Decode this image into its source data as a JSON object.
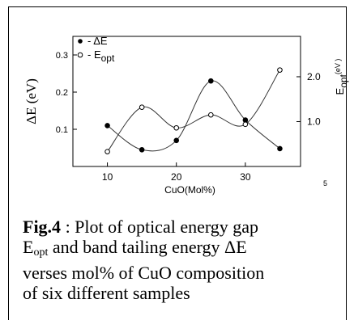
{
  "chart_data": {
    "type": "line",
    "xlabel": "CuO(Mol%)",
    "ylabel_left": "ΔE (eV)",
    "ylabel_right_main": "E",
    "ylabel_right_sub": "opt",
    "ylabel_right_unit": "(eV )",
    "x_ticks": [
      "10",
      "20",
      "30"
    ],
    "y_left_ticks": [
      "0.1",
      "0.2",
      "0.3"
    ],
    "y_right_ticks": [
      "1.0",
      "2.0"
    ],
    "xlim": [
      5,
      38
    ],
    "ylim_left": [
      0,
      0.35
    ],
    "ylim_right": [
      0,
      2.9
    ],
    "legend_location": "top-left",
    "series": [
      {
        "name": "ΔE",
        "name_sub": "",
        "axis": "left",
        "marker": "filled",
        "x": [
          10,
          15,
          20,
          25,
          30,
          35
        ],
        "y": [
          0.11,
          0.045,
          0.07,
          0.23,
          0.125,
          0.048
        ]
      },
      {
        "name": "E",
        "name_sub": "opt",
        "axis": "right",
        "marker": "open",
        "x": [
          10,
          15,
          20,
          25,
          30,
          35
        ],
        "y": [
          0.33,
          1.32,
          0.86,
          1.15,
          0.94,
          2.15
        ]
      }
    ]
  },
  "caption": {
    "fig_label": "Fig.4",
    "text_1": " : Plot of optical energy gap",
    "text_2_main": "E",
    "text_2_sub": "opt",
    "text_3": " and band tailing energy ΔE",
    "text_4": "verses mol% of CuO composition",
    "text_5": "of six different samples"
  },
  "page_mark": "5"
}
